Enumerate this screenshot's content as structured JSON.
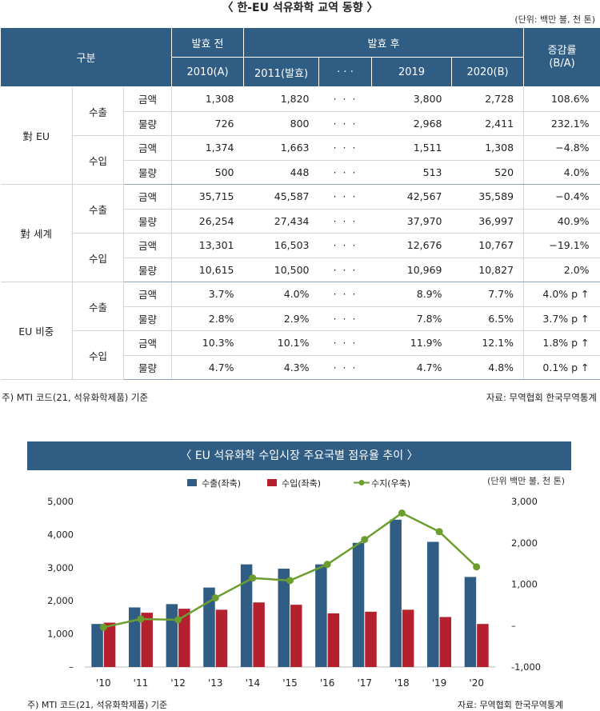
{
  "table": {
    "title": "〈 한-EU 석유화학 교역 동향 〉",
    "unit": "(단위: 백만 불, 천 톤)",
    "header": {
      "category": "구분",
      "before": "발효 전",
      "after": "발효 후",
      "rate": "증감률\n(B/A)",
      "cols": [
        "2010(A)",
        "2011(발효)",
        "· · ·",
        "2019",
        "2020(B)"
      ]
    },
    "groups": [
      {
        "label": "對 EU",
        "subs": [
          {
            "label": "수출",
            "rows": [
              {
                "metric": "금액",
                "v2010": "1,308",
                "v2011": "1,820",
                "dots": "· · ·",
                "v2019": "3,800",
                "v2020": "2,728",
                "rate": "108.6%"
              },
              {
                "metric": "물량",
                "v2010": "726",
                "v2011": "800",
                "dots": "· · ·",
                "v2019": "2,968",
                "v2020": "2,411",
                "rate": "232.1%"
              }
            ]
          },
          {
            "label": "수입",
            "rows": [
              {
                "metric": "금액",
                "v2010": "1,374",
                "v2011": "1,663",
                "dots": "· · ·",
                "v2019": "1,511",
                "v2020": "1,308",
                "rate": "−4.8%"
              },
              {
                "metric": "물량",
                "v2010": "500",
                "v2011": "448",
                "dots": "· · ·",
                "v2019": "513",
                "v2020": "520",
                "rate": "4.0%"
              }
            ]
          }
        ]
      },
      {
        "label": "對 세계",
        "subs": [
          {
            "label": "수출",
            "rows": [
              {
                "metric": "금액",
                "v2010": "35,715",
                "v2011": "45,587",
                "dots": "· · ·",
                "v2019": "42,567",
                "v2020": "35,589",
                "rate": "−0.4%"
              },
              {
                "metric": "물량",
                "v2010": "26,254",
                "v2011": "27,434",
                "dots": "· · ·",
                "v2019": "37,970",
                "v2020": "36,997",
                "rate": "40.9%"
              }
            ]
          },
          {
            "label": "수입",
            "rows": [
              {
                "metric": "금액",
                "v2010": "13,301",
                "v2011": "16,503",
                "dots": "· · ·",
                "v2019": "12,676",
                "v2020": "10,767",
                "rate": "−19.1%"
              },
              {
                "metric": "물량",
                "v2010": "10,615",
                "v2011": "10,500",
                "dots": "· · ·",
                "v2019": "10,969",
                "v2020": "10,827",
                "rate": "2.0%"
              }
            ]
          }
        ]
      },
      {
        "label": "EU 비중",
        "subs": [
          {
            "label": "수출",
            "rows": [
              {
                "metric": "금액",
                "v2010": "3.7%",
                "v2011": "4.0%",
                "dots": "· · ·",
                "v2019": "8.9%",
                "v2020": "7.7%",
                "rate": "4.0% p ↑"
              },
              {
                "metric": "물량",
                "v2010": "2.8%",
                "v2011": "2.9%",
                "dots": "· · ·",
                "v2019": "7.8%",
                "v2020": "6.5%",
                "rate": "3.7% p ↑"
              }
            ]
          },
          {
            "label": "수입",
            "rows": [
              {
                "metric": "금액",
                "v2010": "10.3%",
                "v2011": "10.1%",
                "dots": "· · ·",
                "v2019": "11.9%",
                "v2020": "12.1%",
                "rate": "1.8% p ↑"
              },
              {
                "metric": "물량",
                "v2010": "4.7%",
                "v2011": "4.3%",
                "dots": "· · ·",
                "v2019": "4.7%",
                "v2020": "4.8%",
                "rate": "0.1% p ↑"
              }
            ]
          }
        ]
      }
    ],
    "note": "주) MTI 코드(21, 석유화학제품) 기준",
    "source": "자료: 무역협회 한국무역통계"
  },
  "chart_data": {
    "type": "bar",
    "title": "〈 EU 석유화학 수입시장 주요국별 점유율 추이 〉",
    "unit": "(단위 백만 불, 천 톤)",
    "categories": [
      "'10",
      "'11",
      "'12",
      "'13",
      "'14",
      "'15",
      "'16",
      "'17",
      "'18",
      "'19",
      "'20"
    ],
    "series": [
      {
        "name": "수출(좌축)",
        "type": "bar",
        "axis": "left",
        "color": "#2f5d84",
        "values": [
          1300,
          1800,
          1900,
          2400,
          3100,
          2970,
          3100,
          3750,
          4450,
          3780,
          2720
        ]
      },
      {
        "name": "수입(좌축)",
        "type": "bar",
        "axis": "left",
        "color": "#b5202e",
        "values": [
          1340,
          1640,
          1760,
          1730,
          1950,
          1880,
          1620,
          1670,
          1730,
          1510,
          1300
        ]
      },
      {
        "name": "수지(우축)",
        "type": "line",
        "axis": "right",
        "color": "#6c9e2f",
        "values": [
          -40,
          160,
          140,
          670,
          1150,
          1090,
          1480,
          2080,
          2720,
          2270,
          1420
        ]
      }
    ],
    "y_left": {
      "ylim": [
        0,
        5000
      ],
      "ticks": [
        "–",
        "1,000",
        "2,000",
        "3,000",
        "4,000",
        "5,000"
      ]
    },
    "y_right": {
      "ylim": [
        -1000,
        3000
      ],
      "ticks": [
        "-1,000",
        "–",
        "1,000",
        "2,000",
        "3,000"
      ]
    },
    "legend": "top-center",
    "grid": false,
    "note": "주) MTI 코드(21, 석유화학제품) 기준",
    "source": "자료: 무역협회 한국무역통계"
  }
}
